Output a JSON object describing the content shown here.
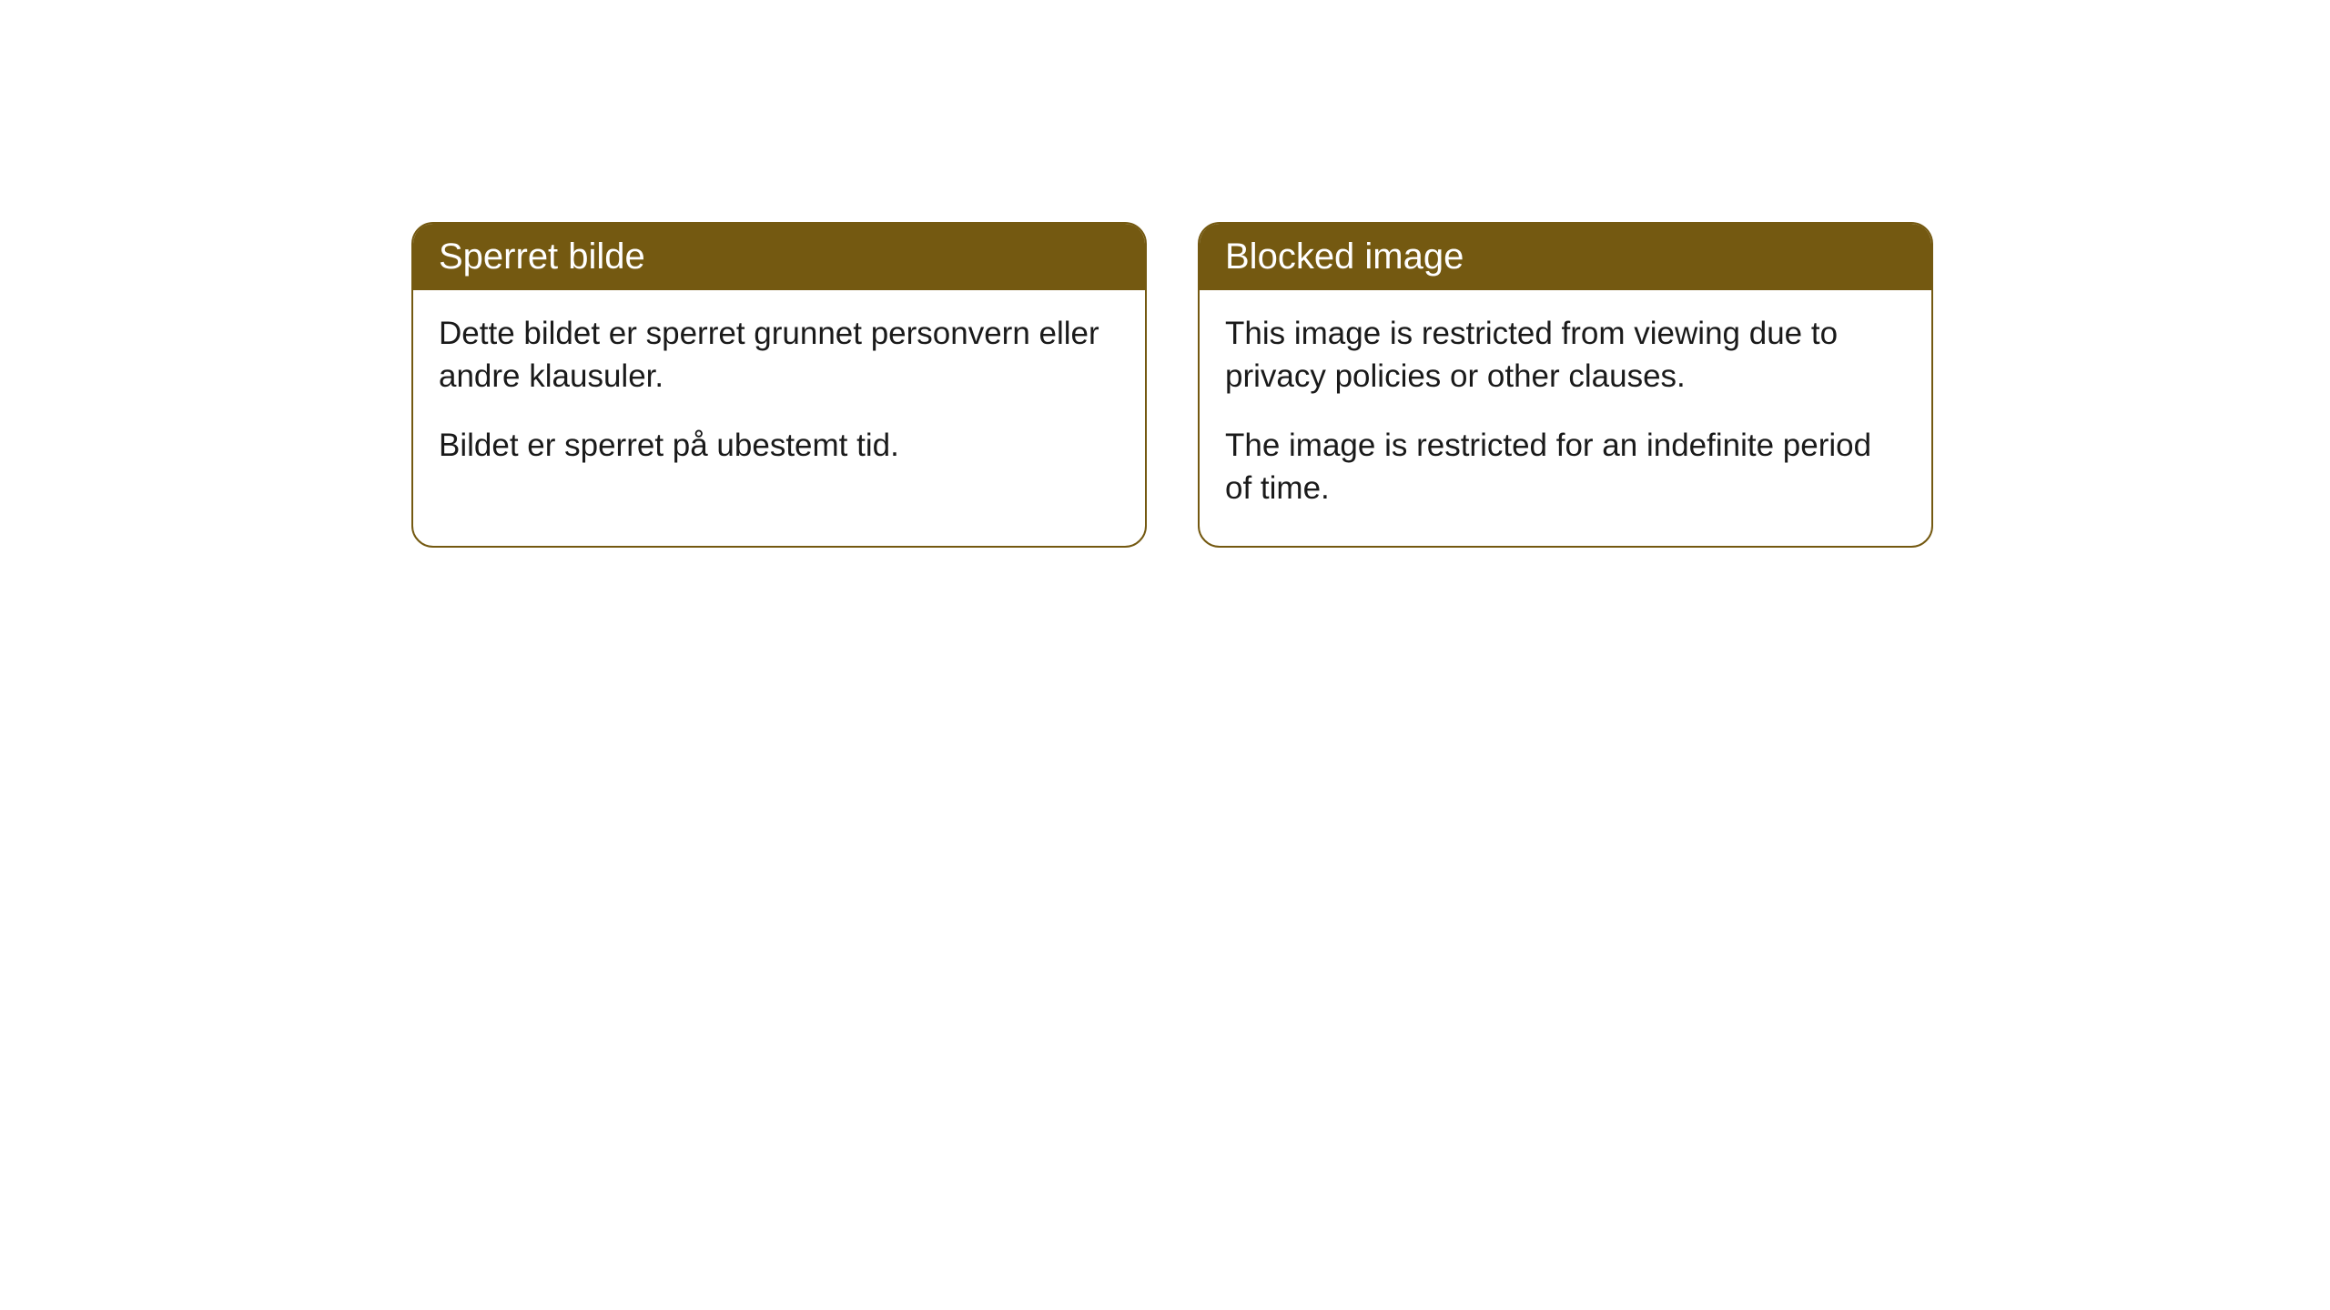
{
  "cards": [
    {
      "title": "Sperret bilde",
      "paragraph1": "Dette bildet er sperret grunnet personvern eller andre klausuler.",
      "paragraph2": "Bildet er sperret på ubestemt tid."
    },
    {
      "title": "Blocked image",
      "paragraph1": "This image is restricted from viewing due to privacy policies or other clauses.",
      "paragraph2": "The image is restricted for an indefinite period of time."
    }
  ],
  "style": {
    "header_bg_color": "#745911",
    "header_text_color": "#ffffff",
    "border_color": "#745911",
    "body_text_color": "#1a1a1a",
    "background_color": "#ffffff",
    "border_radius": 24,
    "header_fontsize": 40,
    "body_fontsize": 35
  }
}
